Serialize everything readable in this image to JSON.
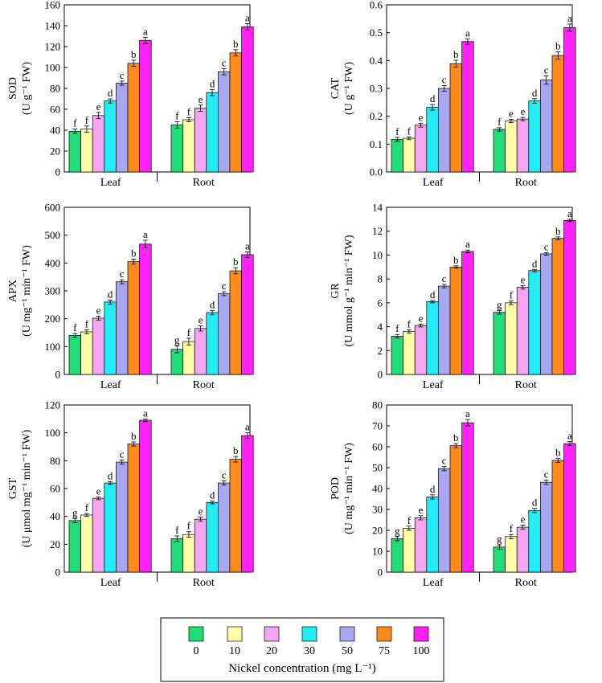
{
  "legend": {
    "title": "Nickel concentration (mg L⁻¹)",
    "entries": [
      "0",
      "10",
      "20",
      "30",
      "50",
      "75",
      "100"
    ]
  },
  "series_colors": [
    "#22dd77",
    "#ffffa8",
    "#f4a6f0",
    "#22ecf4",
    "#a8a8f2",
    "#ff8a1e",
    "#ff22f6"
  ],
  "chart_data": [
    {
      "type": "bar",
      "ylabel_line1": "SOD",
      "ylabel_line2": "(U g⁻¹ FW)",
      "categories": [
        "Leaf",
        "Root"
      ],
      "ylim": [
        0,
        160
      ],
      "yticks": [
        0,
        20,
        40,
        60,
        80,
        100,
        120,
        140,
        160
      ],
      "series": [
        {
          "values": [
            39,
            45
          ],
          "errors": [
            2,
            3
          ],
          "letters": [
            "f",
            "f"
          ]
        },
        {
          "values": [
            41,
            50
          ],
          "errors": [
            3,
            2
          ],
          "letters": [
            "f",
            "f"
          ]
        },
        {
          "values": [
            54,
            61
          ],
          "errors": [
            3,
            3
          ],
          "letters": [
            "e",
            "e"
          ]
        },
        {
          "values": [
            68,
            76
          ],
          "errors": [
            2,
            3
          ],
          "letters": [
            "d",
            "d"
          ]
        },
        {
          "values": [
            85,
            96
          ],
          "errors": [
            2,
            3
          ],
          "letters": [
            "c",
            "c"
          ]
        },
        {
          "values": [
            104,
            114
          ],
          "errors": [
            3,
            3
          ],
          "letters": [
            "b",
            "b"
          ]
        },
        {
          "values": [
            126,
            139
          ],
          "errors": [
            3,
            3
          ],
          "letters": [
            "a",
            "a"
          ]
        }
      ]
    },
    {
      "type": "bar",
      "ylabel_line1": "CAT",
      "ylabel_line2": "(U g⁻¹ FW)",
      "categories": [
        "Leaf",
        "Root"
      ],
      "ylim": [
        0,
        0.6
      ],
      "yticks": [
        0.0,
        0.1,
        0.2,
        0.3,
        0.4,
        0.5,
        0.6
      ],
      "tick_decimals": 1,
      "series": [
        {
          "values": [
            0.117,
            0.153
          ],
          "errors": [
            0.007,
            0.006
          ],
          "letters": [
            "f",
            "f"
          ]
        },
        {
          "values": [
            0.121,
            0.183
          ],
          "errors": [
            0.005,
            0.006
          ],
          "letters": [
            "f",
            "e"
          ]
        },
        {
          "values": [
            0.168,
            0.19
          ],
          "errors": [
            0.007,
            0.006
          ],
          "letters": [
            "e",
            "e"
          ]
        },
        {
          "values": [
            0.232,
            0.255
          ],
          "errors": [
            0.01,
            0.008
          ],
          "letters": [
            "d",
            "d"
          ]
        },
        {
          "values": [
            0.3,
            0.33
          ],
          "errors": [
            0.01,
            0.015
          ],
          "letters": [
            "c",
            "c"
          ]
        },
        {
          "values": [
            0.389,
            0.418
          ],
          "errors": [
            0.012,
            0.013
          ],
          "letters": [
            "b",
            "b"
          ]
        },
        {
          "values": [
            0.468,
            0.518
          ],
          "errors": [
            0.01,
            0.013
          ],
          "letters": [
            "a",
            "a"
          ]
        }
      ]
    },
    {
      "type": "bar",
      "ylabel_line1": "APX",
      "ylabel_line2": "(U mg⁻¹ min⁻¹ FW)",
      "categories": [
        "Leaf",
        "Root"
      ],
      "ylim": [
        0,
        600
      ],
      "yticks": [
        0,
        100,
        200,
        300,
        400,
        500,
        600
      ],
      "series": [
        {
          "values": [
            140,
            90
          ],
          "errors": [
            7,
            12
          ],
          "letters": [
            "f",
            "g"
          ]
        },
        {
          "values": [
            153,
            118
          ],
          "errors": [
            7,
            12
          ],
          "letters": [
            "f",
            "f"
          ]
        },
        {
          "values": [
            202,
            165
          ],
          "errors": [
            7,
            9
          ],
          "letters": [
            "e",
            "e"
          ]
        },
        {
          "values": [
            260,
            222
          ],
          "errors": [
            7,
            8
          ],
          "letters": [
            "d",
            "d"
          ]
        },
        {
          "values": [
            333,
            290
          ],
          "errors": [
            7,
            7
          ],
          "letters": [
            "c",
            "c"
          ]
        },
        {
          "values": [
            405,
            372
          ],
          "errors": [
            9,
            11
          ],
          "letters": [
            "b",
            "b"
          ]
        },
        {
          "values": [
            468,
            430
          ],
          "errors": [
            14,
            10
          ],
          "letters": [
            "a",
            "a"
          ]
        }
      ]
    },
    {
      "type": "bar",
      "ylabel_line1": "GR",
      "ylabel_line2": "(U mmol g⁻¹ min⁻¹ FW)",
      "categories": [
        "Leaf",
        "Root"
      ],
      "ylim": [
        0,
        14
      ],
      "yticks": [
        0,
        2,
        4,
        6,
        8,
        10,
        12,
        14
      ],
      "series": [
        {
          "values": [
            3.2,
            5.2
          ],
          "errors": [
            0.15,
            0.15
          ],
          "letters": [
            "f",
            "g"
          ]
        },
        {
          "values": [
            3.6,
            6.0
          ],
          "errors": [
            0.15,
            0.15
          ],
          "letters": [
            "f",
            "f"
          ]
        },
        {
          "values": [
            4.1,
            7.3
          ],
          "errors": [
            0.12,
            0.15
          ],
          "letters": [
            "e",
            "e"
          ]
        },
        {
          "values": [
            6.1,
            8.7
          ],
          "errors": [
            0.1,
            0.1
          ],
          "letters": [
            "d",
            "d"
          ]
        },
        {
          "values": [
            7.4,
            10.1
          ],
          "errors": [
            0.15,
            0.1
          ],
          "letters": [
            "c",
            "c"
          ]
        },
        {
          "values": [
            9.0,
            11.4
          ],
          "errors": [
            0.1,
            0.12
          ],
          "letters": [
            "b",
            "b"
          ]
        },
        {
          "values": [
            10.3,
            12.9
          ],
          "errors": [
            0.12,
            0.1
          ],
          "letters": [
            "a",
            "a"
          ]
        }
      ]
    },
    {
      "type": "bar",
      "ylabel_line1": "GST",
      "ylabel_line2": "(U μmol mg⁻¹ min⁻¹ FW)",
      "categories": [
        "Leaf",
        "Root"
      ],
      "ylim": [
        0,
        120
      ],
      "yticks": [
        0,
        20,
        40,
        60,
        80,
        100,
        120
      ],
      "series": [
        {
          "values": [
            37,
            24
          ],
          "errors": [
            1.5,
            2
          ],
          "letters": [
            "g",
            "f"
          ]
        },
        {
          "values": [
            41,
            27
          ],
          "errors": [
            1,
            2
          ],
          "letters": [
            "f",
            "f"
          ]
        },
        {
          "values": [
            53,
            38
          ],
          "errors": [
            1,
            1.5
          ],
          "letters": [
            "e",
            "e"
          ]
        },
        {
          "values": [
            64,
            50
          ],
          "errors": [
            1,
            1
          ],
          "letters": [
            "d",
            "d"
          ]
        },
        {
          "values": [
            79,
            64
          ],
          "errors": [
            1.5,
            1.5
          ],
          "letters": [
            "c",
            "c"
          ]
        },
        {
          "values": [
            92,
            81
          ],
          "errors": [
            1.5,
            2
          ],
          "letters": [
            "b",
            "b"
          ]
        },
        {
          "values": [
            109,
            98
          ],
          "errors": [
            1,
            2
          ],
          "letters": [
            "a",
            "a"
          ]
        }
      ]
    },
    {
      "type": "bar",
      "ylabel_line1": "POD",
      "ylabel_line2": "(U mg⁻¹ min⁻¹ FW)",
      "categories": [
        "Leaf",
        "Root"
      ],
      "ylim": [
        0,
        80
      ],
      "yticks": [
        0,
        10,
        20,
        30,
        40,
        50,
        60,
        70,
        80
      ],
      "series": [
        {
          "values": [
            16,
            12
          ],
          "errors": [
            1,
            1
          ],
          "letters": [
            "g",
            "g"
          ]
        },
        {
          "values": [
            21,
            17
          ],
          "errors": [
            1,
            1
          ],
          "letters": [
            "f",
            "f"
          ]
        },
        {
          "values": [
            26,
            21.5
          ],
          "errors": [
            1,
            1
          ],
          "letters": [
            "e",
            "e"
          ]
        },
        {
          "values": [
            36,
            29.5
          ],
          "errors": [
            1,
            1
          ],
          "letters": [
            "d",
            "d"
          ]
        },
        {
          "values": [
            49.5,
            43
          ],
          "errors": [
            1,
            1
          ],
          "letters": [
            "c",
            "c"
          ]
        },
        {
          "values": [
            60.5,
            53.5
          ],
          "errors": [
            1,
            1
          ],
          "letters": [
            "b",
            "b"
          ]
        },
        {
          "values": [
            71.5,
            61.5
          ],
          "errors": [
            1.5,
            1
          ],
          "letters": [
            "a",
            "a"
          ]
        }
      ]
    }
  ]
}
